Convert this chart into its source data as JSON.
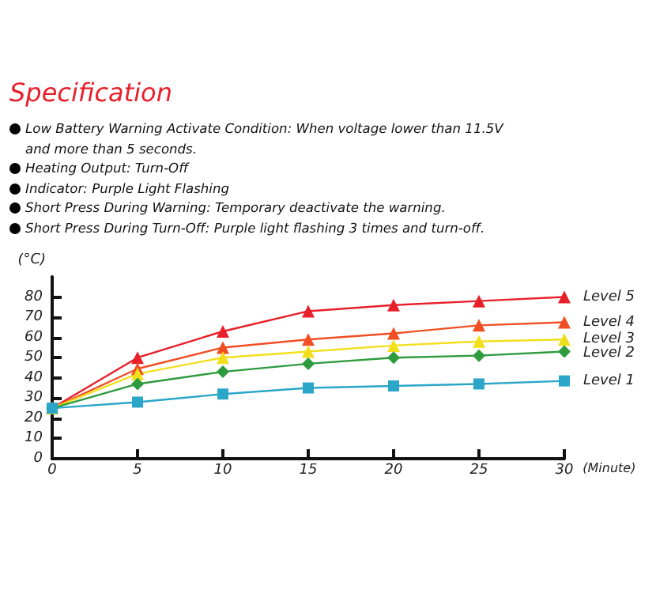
{
  "chart_data": {
    "type": "line",
    "title": "Specification",
    "annotations": [
      "Low Battery Warning Activate Condition: When voltage lower than 11.5V and more than 5 seconds.",
      "Heating Output: Turn-Off",
      "Indicator: Purple Light Flashing",
      "Short Press During Warning: Temporary deactivate the warning.",
      "Short Press During Turn-Off: Purple light flashing 3 times and turn-off."
    ],
    "ylabel": "(°C)",
    "xlabel": "(Minute)",
    "x": [
      0,
      5,
      10,
      15,
      20,
      25,
      30
    ],
    "series": [
      {
        "name": "Level 5",
        "color": "#e8202a",
        "marker": "triangle",
        "values": [
          25,
          50,
          63,
          73,
          76,
          78,
          80
        ]
      },
      {
        "name": "Level 4",
        "color": "#f04e23",
        "marker": "triangle",
        "values": [
          25,
          44.5,
          55,
          59,
          62,
          66,
          67.5
        ]
      },
      {
        "name": "Level 3",
        "color": "#f2df1c",
        "marker": "triangle",
        "values": [
          25,
          42,
          50,
          53,
          56,
          58,
          59
        ]
      },
      {
        "name": "Level 2",
        "color": "#2e9b3f",
        "marker": "diamond",
        "values": [
          25,
          37,
          43,
          47,
          50,
          51,
          53
        ]
      },
      {
        "name": "Level 1",
        "color": "#2ba6c8",
        "marker": "square",
        "values": [
          25,
          28,
          32,
          35,
          36,
          37,
          38.5
        ]
      }
    ],
    "xlim": [
      0,
      30
    ],
    "xticks": [
      0,
      5,
      10,
      15,
      20,
      25,
      30
    ],
    "ylim": [
      0,
      90
    ],
    "yticks": [
      0,
      10,
      20,
      30,
      40,
      50,
      60,
      70,
      80
    ],
    "grid": false,
    "legend": false,
    "line_style": "solid"
  }
}
